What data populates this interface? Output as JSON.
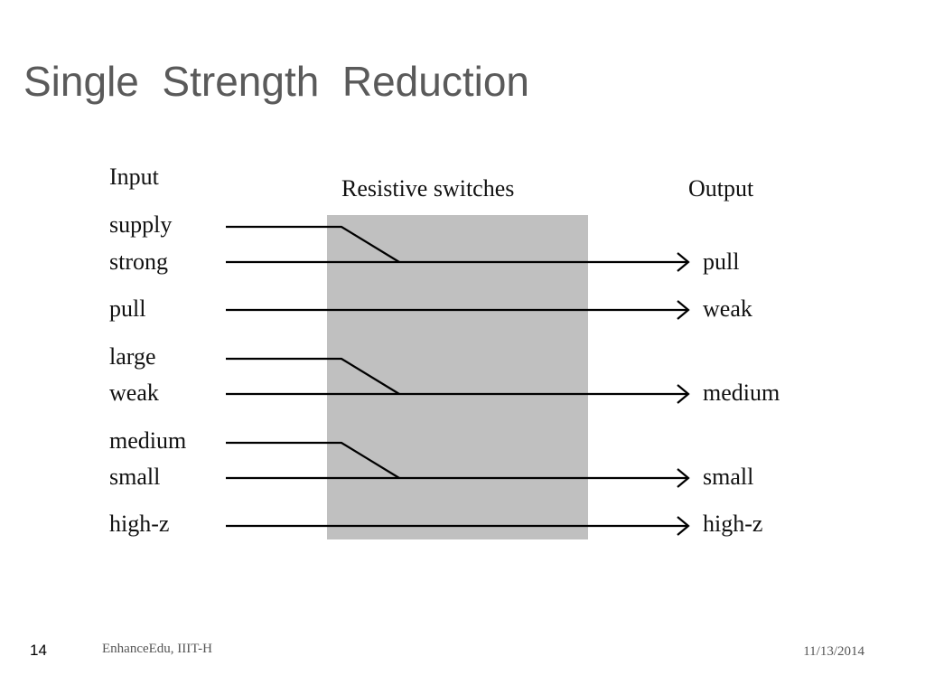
{
  "title": "Single  Strength  Reduction",
  "diagram": {
    "input_header": "Input",
    "switch_header": "Resistive switches",
    "output_header": "Output",
    "inputs": [
      "supply",
      "strong",
      "pull",
      "large",
      "weak",
      "medium",
      "small",
      "high-z"
    ],
    "outputs": [
      "pull",
      "weak",
      "medium",
      "small",
      "high-z"
    ]
  },
  "footer": {
    "page": "14",
    "source": "EnhanceEdu, IIIT-H",
    "date": "11/13/2014"
  }
}
